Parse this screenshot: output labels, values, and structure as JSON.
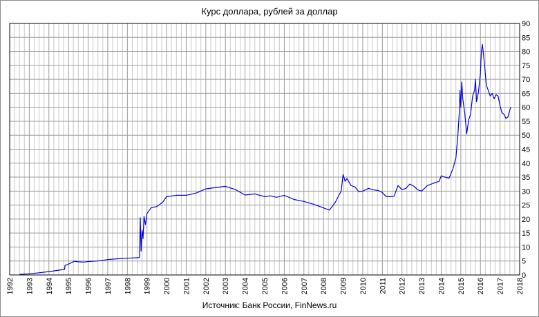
{
  "chart_data": {
    "type": "line",
    "title": "Курс доллара,  рублей  за доллар",
    "source": "Источник: Банк России, FinNews.ru",
    "xlabel": "",
    "ylabel": "",
    "xlim": [
      1992,
      2018
    ],
    "ylim": [
      0,
      90
    ],
    "x_ticks": [
      "1992",
      "1993",
      "1994",
      "1995",
      "1996",
      "1997",
      "1998",
      "1999",
      "2000",
      "2001",
      "2002",
      "2003",
      "2004",
      "2005",
      "2006",
      "2007",
      "2008",
      "2009",
      "2010",
      "2011",
      "2012",
      "2013",
      "2014",
      "2015",
      "2016",
      "2017",
      "2018"
    ],
    "y_ticks": [
      "0",
      "5",
      "10",
      "15",
      "20",
      "25",
      "30",
      "35",
      "40",
      "45",
      "50",
      "55",
      "60",
      "65",
      "70",
      "75",
      "80",
      "85",
      "90"
    ],
    "grid": true,
    "legend": "none",
    "line_color": "#0000dd",
    "series": [
      {
        "x": [
          1992.5,
          1993.0,
          1993.5,
          1994.0,
          1994.4,
          1994.8,
          1994.82,
          1995.0,
          1995.3,
          1995.5,
          1995.8,
          1996.0,
          1996.5,
          1997.0,
          1997.5,
          1998.0,
          1998.55,
          1998.62,
          1998.66,
          1998.7,
          1998.75,
          1998.8,
          1998.85,
          1998.92,
          1999.0,
          1999.2,
          1999.5,
          1999.8,
          2000.0,
          2000.5,
          2001.0,
          2001.5,
          2002.0,
          2002.5,
          2003.0,
          2003.5,
          2004.0,
          2004.5,
          2005.0,
          2005.3,
          2005.6,
          2006.0,
          2006.5,
          2007.0,
          2007.5,
          2008.0,
          2008.3,
          2008.6,
          2008.75,
          2008.9,
          2009.0,
          2009.1,
          2009.2,
          2009.4,
          2009.6,
          2009.8,
          2010.0,
          2010.3,
          2010.5,
          2010.8,
          2011.0,
          2011.2,
          2011.4,
          2011.6,
          2011.8,
          2012.0,
          2012.2,
          2012.4,
          2012.6,
          2012.8,
          2013.0,
          2013.3,
          2013.6,
          2013.9,
          2014.0,
          2014.2,
          2014.4,
          2014.6,
          2014.75,
          2014.85,
          2014.92,
          2014.96,
          2015.0,
          2015.05,
          2015.1,
          2015.2,
          2015.3,
          2015.4,
          2015.5,
          2015.6,
          2015.7,
          2015.75,
          2015.8,
          2015.9,
          2016.0,
          2016.05,
          2016.1,
          2016.2,
          2016.3,
          2016.4,
          2016.5,
          2016.6,
          2016.7,
          2016.8,
          2016.9,
          2017.0,
          2017.1,
          2017.2,
          2017.3,
          2017.4,
          2017.5,
          2017.55
        ],
        "values": [
          0.2,
          0.4,
          0.8,
          1.2,
          1.6,
          2.0,
          3.4,
          3.9,
          4.9,
          4.7,
          4.6,
          4.8,
          5.0,
          5.5,
          5.8,
          6.0,
          6.2,
          6.3,
          20.5,
          8.5,
          16.0,
          13.0,
          21.0,
          18.0,
          22.0,
          24.0,
          24.5,
          26.0,
          28.0,
          28.5,
          28.5,
          29.3,
          30.8,
          31.3,
          31.7,
          30.6,
          28.6,
          29.0,
          28.0,
          28.3,
          27.8,
          28.5,
          27.0,
          26.3,
          25.3,
          24.0,
          23.2,
          26.0,
          28.0,
          30.0,
          36.0,
          33.5,
          34.5,
          32.0,
          31.5,
          29.8,
          30.0,
          31.0,
          30.5,
          30.2,
          29.5,
          28.0,
          28.0,
          28.2,
          32.0,
          30.5,
          31.0,
          32.5,
          31.8,
          30.5,
          30.0,
          32.0,
          32.8,
          33.5,
          35.5,
          35.0,
          34.6,
          38.0,
          42.0,
          50.0,
          58.0,
          66.0,
          60.0,
          69.0,
          63.0,
          58.0,
          50.5,
          55.5,
          57.5,
          64.0,
          66.0,
          70.0,
          62.0,
          65.5,
          72.0,
          80.0,
          82.5,
          76.0,
          68.0,
          66.0,
          64.0,
          65.0,
          63.0,
          64.5,
          64.0,
          60.5,
          58.0,
          57.5,
          56.0,
          56.5,
          59.0,
          60.0
        ]
      }
    ]
  }
}
